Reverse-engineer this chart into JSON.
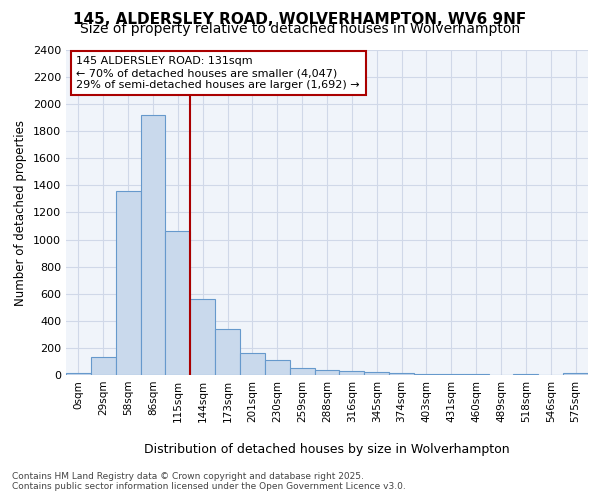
{
  "title1": "145, ALDERSLEY ROAD, WOLVERHAMPTON, WV6 9NF",
  "title2": "Size of property relative to detached houses in Wolverhampton",
  "xlabel": "Distribution of detached houses by size in Wolverhampton",
  "ylabel": "Number of detached properties",
  "bin_labels": [
    "0sqm",
    "29sqm",
    "58sqm",
    "86sqm",
    "115sqm",
    "144sqm",
    "173sqm",
    "201sqm",
    "230sqm",
    "259sqm",
    "288sqm",
    "316sqm",
    "345sqm",
    "374sqm",
    "403sqm",
    "431sqm",
    "460sqm",
    "489sqm",
    "518sqm",
    "546sqm",
    "575sqm"
  ],
  "bin_values": [
    15,
    130,
    1360,
    1920,
    1060,
    560,
    340,
    165,
    110,
    55,
    35,
    30,
    20,
    15,
    5,
    10,
    5,
    0,
    5,
    0,
    15
  ],
  "bar_color": "#c9d9ec",
  "bar_edge_color": "#6699cc",
  "vline_color": "#aa0000",
  "annotation_text": "145 ALDERSLEY ROAD: 131sqm\n← 70% of detached houses are smaller (4,047)\n29% of semi-detached houses are larger (1,692) →",
  "annotation_box_color": "#ffffff",
  "annotation_box_edge": "#aa0000",
  "ylim": [
    0,
    2400
  ],
  "yticks": [
    0,
    200,
    400,
    600,
    800,
    1000,
    1200,
    1400,
    1600,
    1800,
    2000,
    2200,
    2400
  ],
  "footer1": "Contains HM Land Registry data © Crown copyright and database right 2025.",
  "footer2": "Contains public sector information licensed under the Open Government Licence v3.0.",
  "background_color": "#ffffff",
  "plot_bg_color": "#f0f4fa",
  "grid_color": "#d0d8e8",
  "title_fontsize": 11,
  "subtitle_fontsize": 10
}
